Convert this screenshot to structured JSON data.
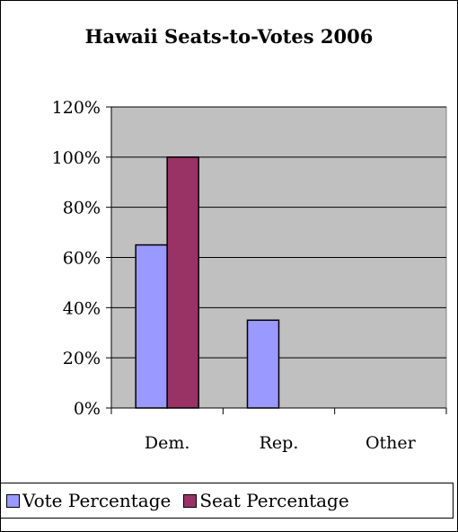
{
  "chart_data": {
    "type": "bar",
    "title": "Hawaii Seats-to-Votes 2006",
    "categories": [
      "Dem.",
      "Rep.",
      "Other"
    ],
    "series": [
      {
        "name": "Vote Percentage",
        "values": [
          65,
          35,
          0
        ],
        "color": "#9999ff"
      },
      {
        "name": "Seat Percentage",
        "values": [
          100,
          0,
          0
        ],
        "color": "#993366"
      }
    ],
    "ylim": [
      0,
      120
    ],
    "yticks": [
      "0%",
      "20%",
      "40%",
      "60%",
      "80%",
      "100%",
      "120%"
    ],
    "ytick_values": [
      0,
      20,
      40,
      60,
      80,
      100,
      120
    ],
    "grid": true,
    "plot_background": "#c0c0c0",
    "legend_position": "bottom",
    "xlabel": "",
    "ylabel": ""
  }
}
